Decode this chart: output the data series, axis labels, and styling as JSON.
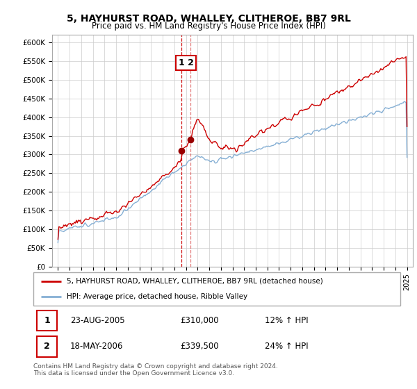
{
  "title": "5, HAYHURST ROAD, WHALLEY, CLITHEROE, BB7 9RL",
  "subtitle": "Price paid vs. HM Land Registry's House Price Index (HPI)",
  "ylabel_ticks": [
    "£0",
    "£50K",
    "£100K",
    "£150K",
    "£200K",
    "£250K",
    "£300K",
    "£350K",
    "£400K",
    "£450K",
    "£500K",
    "£550K",
    "£600K"
  ],
  "ytick_values": [
    0,
    50000,
    100000,
    150000,
    200000,
    250000,
    300000,
    350000,
    400000,
    450000,
    500000,
    550000,
    600000
  ],
  "sale1": {
    "date": "23-AUG-2005",
    "price": 310000,
    "hpi_diff": "12% ↑ HPI",
    "label": "1",
    "t": 2005.625
  },
  "sale2": {
    "date": "18-MAY-2006",
    "price": 339500,
    "hpi_diff": "24% ↑ HPI",
    "label": "2",
    "t": 2006.375
  },
  "legend_line1": "5, HAYHURST ROAD, WHALLEY, CLITHEROE, BB7 9RL (detached house)",
  "legend_line2": "HPI: Average price, detached house, Ribble Valley",
  "footnote": "Contains HM Land Registry data © Crown copyright and database right 2024.\nThis data is licensed under the Open Government Licence v3.0.",
  "line_color_red": "#cc0000",
  "line_color_blue": "#85afd4",
  "sale_marker_color": "#990000",
  "vline_color": "#cc0000",
  "background_color": "#ffffff",
  "grid_color": "#cccccc",
  "table_border_color": "#cc0000",
  "ylim": [
    0,
    620000
  ],
  "xlim_left": 1994.5,
  "xlim_right": 2025.5
}
